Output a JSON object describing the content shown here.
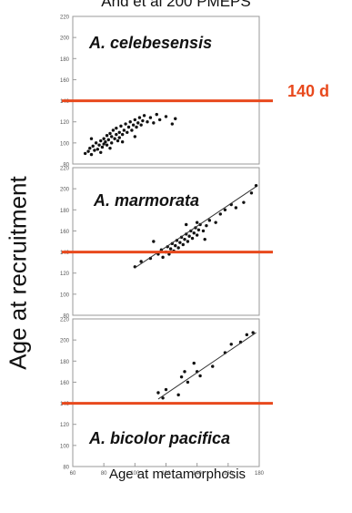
{
  "header": {
    "title_fragment": "And et al 200 PMEPS"
  },
  "labels": {
    "y_title": "Age at recruitment",
    "x_title": "Age at metamorphosis",
    "threshold_callout": "140 d"
  },
  "colors": {
    "threshold": "#e8491d",
    "points": "#111111",
    "fit": "#333333",
    "axis": "#9a9a9a"
  },
  "chart_data": [
    {
      "type": "scatter",
      "title": "A. celebesensis",
      "xlim": [
        60,
        180
      ],
      "ylim": [
        80,
        220
      ],
      "y_ticks": [
        80,
        100,
        120,
        140,
        160,
        180,
        200,
        220
      ],
      "x_ticks": [],
      "threshold": 140,
      "fit": null,
      "points": [
        [
          68,
          90
        ],
        [
          70,
          92
        ],
        [
          71,
          95
        ],
        [
          72,
          89
        ],
        [
          73,
          97
        ],
        [
          74,
          93
        ],
        [
          75,
          100
        ],
        [
          76,
          94
        ],
        [
          77,
          98
        ],
        [
          78,
          102
        ],
        [
          79,
          96
        ],
        [
          80,
          104
        ],
        [
          80,
          99
        ],
        [
          81,
          101
        ],
        [
          82,
          107
        ],
        [
          82,
          98
        ],
        [
          83,
          103
        ],
        [
          84,
          109
        ],
        [
          85,
          100
        ],
        [
          85,
          106
        ],
        [
          86,
          112
        ],
        [
          87,
          104
        ],
        [
          88,
          108
        ],
        [
          88,
          114
        ],
        [
          89,
          102
        ],
        [
          90,
          110
        ],
        [
          90,
          105
        ],
        [
          91,
          116
        ],
        [
          92,
          108
        ],
        [
          93,
          112
        ],
        [
          94,
          118
        ],
        [
          95,
          110
        ],
        [
          96,
          115
        ],
        [
          97,
          120
        ],
        [
          98,
          112
        ],
        [
          99,
          117
        ],
        [
          100,
          122
        ],
        [
          101,
          115
        ],
        [
          102,
          119
        ],
        [
          103,
          124
        ],
        [
          104,
          117
        ],
        [
          105,
          121
        ],
        [
          106,
          126
        ],
        [
          108,
          120
        ],
        [
          110,
          124
        ],
        [
          112,
          119
        ],
        [
          114,
          127
        ],
        [
          116,
          122
        ],
        [
          120,
          125
        ],
        [
          124,
          118
        ],
        [
          126,
          123
        ],
        [
          72,
          104
        ],
        [
          78,
          91
        ],
        [
          84,
          95
        ],
        [
          92,
          101
        ],
        [
          100,
          106
        ]
      ]
    },
    {
      "type": "scatter",
      "title": "A. marmorata",
      "xlim": [
        60,
        180
      ],
      "ylim": [
        80,
        220
      ],
      "y_ticks": [
        80,
        100,
        120,
        140,
        160,
        180,
        200,
        220
      ],
      "x_ticks": [],
      "threshold": 140,
      "fit": {
        "x": [
          100,
          178
        ],
        "y": [
          125,
          202
        ]
      },
      "points": [
        [
          100,
          126
        ],
        [
          104,
          131
        ],
        [
          110,
          134
        ],
        [
          112,
          150
        ],
        [
          115,
          138
        ],
        [
          117,
          142
        ],
        [
          118,
          135
        ],
        [
          120,
          140
        ],
        [
          121,
          145
        ],
        [
          122,
          138
        ],
        [
          123,
          143
        ],
        [
          124,
          148
        ],
        [
          125,
          141
        ],
        [
          126,
          146
        ],
        [
          127,
          151
        ],
        [
          128,
          144
        ],
        [
          129,
          149
        ],
        [
          130,
          154
        ],
        [
          131,
          147
        ],
        [
          132,
          152
        ],
        [
          133,
          157
        ],
        [
          134,
          150
        ],
        [
          135,
          155
        ],
        [
          136,
          160
        ],
        [
          137,
          153
        ],
        [
          138,
          158
        ],
        [
          139,
          163
        ],
        [
          140,
          156
        ],
        [
          141,
          161
        ],
        [
          142,
          166
        ],
        [
          144,
          160
        ],
        [
          146,
          165
        ],
        [
          148,
          170
        ],
        [
          152,
          168
        ],
        [
          155,
          176
        ],
        [
          158,
          180
        ],
        [
          162,
          185
        ],
        [
          165,
          182
        ],
        [
          170,
          187
        ],
        [
          175,
          196
        ],
        [
          178,
          203
        ],
        [
          133,
          166
        ],
        [
          140,
          168
        ],
        [
          145,
          152
        ]
      ]
    },
    {
      "type": "scatter",
      "title": "A. bicolor pacifica",
      "xlim": [
        60,
        180
      ],
      "ylim": [
        80,
        220
      ],
      "y_ticks": [
        80,
        100,
        120,
        140,
        160,
        180,
        200,
        220
      ],
      "x_ticks": [
        60,
        80,
        100,
        120,
        140,
        160,
        180
      ],
      "threshold": 140,
      "fit": {
        "x": [
          115,
          178
        ],
        "y": [
          144,
          207
        ]
      },
      "points": [
        [
          115,
          150
        ],
        [
          118,
          145
        ],
        [
          120,
          153
        ],
        [
          128,
          148
        ],
        [
          130,
          165
        ],
        [
          132,
          170
        ],
        [
          134,
          160
        ],
        [
          138,
          178
        ],
        [
          142,
          166
        ],
        [
          150,
          175
        ],
        [
          158,
          188
        ],
        [
          162,
          196
        ],
        [
          168,
          198
        ],
        [
          172,
          205
        ],
        [
          176,
          207
        ],
        [
          140,
          170
        ]
      ]
    }
  ]
}
